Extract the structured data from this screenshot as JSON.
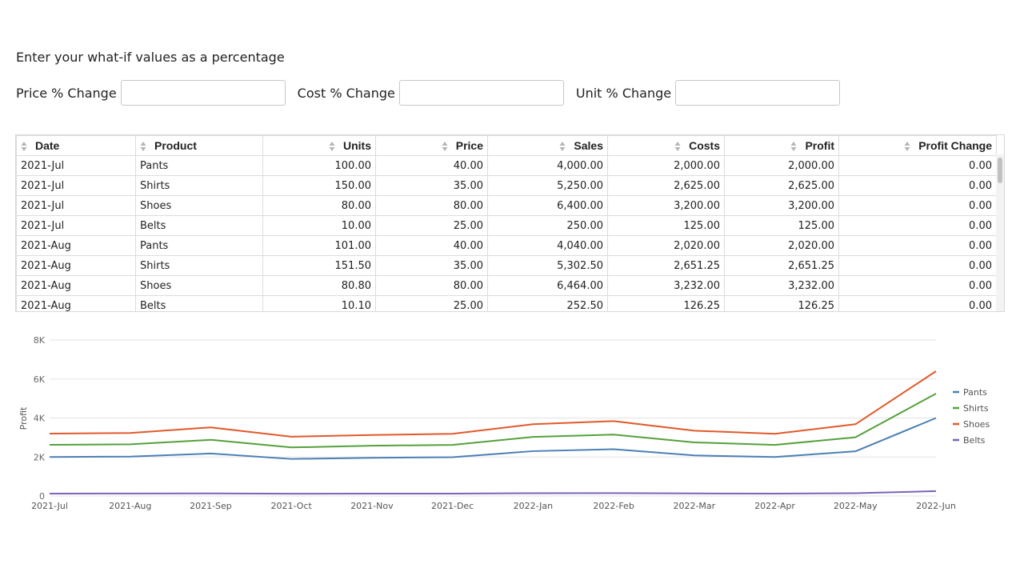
{
  "intro": "Enter your what-if values as a percentage",
  "inputs": {
    "price_label": "Price % Change",
    "cost_label": "Cost % Change",
    "unit_label": "Unit % Change",
    "price_value": "",
    "cost_value": "",
    "unit_value": ""
  },
  "table": {
    "columns": [
      "Date",
      "Product",
      "Units",
      "Price",
      "Sales",
      "Costs",
      "Profit",
      "Profit Change"
    ],
    "rows": [
      [
        "2021-Jul",
        "Pants",
        "100.00",
        "40.00",
        "4,000.00",
        "2,000.00",
        "2,000.00",
        "0.00"
      ],
      [
        "2021-Jul",
        "Shirts",
        "150.00",
        "35.00",
        "5,250.00",
        "2,625.00",
        "2,625.00",
        "0.00"
      ],
      [
        "2021-Jul",
        "Shoes",
        "80.00",
        "80.00",
        "6,400.00",
        "3,200.00",
        "3,200.00",
        "0.00"
      ],
      [
        "2021-Jul",
        "Belts",
        "10.00",
        "25.00",
        "250.00",
        "125.00",
        "125.00",
        "0.00"
      ],
      [
        "2021-Aug",
        "Pants",
        "101.00",
        "40.00",
        "4,040.00",
        "2,020.00",
        "2,020.00",
        "0.00"
      ],
      [
        "2021-Aug",
        "Shirts",
        "151.50",
        "35.00",
        "5,302.50",
        "2,651.25",
        "2,651.25",
        "0.00"
      ],
      [
        "2021-Aug",
        "Shoes",
        "80.80",
        "80.00",
        "6,464.00",
        "3,232.00",
        "3,232.00",
        "0.00"
      ],
      [
        "2021-Aug",
        "Belts",
        "10.10",
        "25.00",
        "252.50",
        "126.25",
        "126.25",
        "0.00"
      ]
    ]
  },
  "chart_data": {
    "type": "line",
    "ylabel": "Profit",
    "xlabel": "",
    "ylim": [
      0,
      8000
    ],
    "y_ticks": [
      "0",
      "2K",
      "4K",
      "6K",
      "8K"
    ],
    "y_tick_values": [
      0,
      2000,
      4000,
      6000,
      8000
    ],
    "categories": [
      "2021-Jul",
      "2021-Aug",
      "2021-Sep",
      "2021-Oct",
      "2021-Nov",
      "2021-Dec",
      "2022-Jan",
      "2022-Feb",
      "2022-Mar",
      "2022-Apr",
      "2022-May",
      "2022-Jun"
    ],
    "legend_position": "right",
    "grid": true,
    "series": [
      {
        "name": "Pants",
        "color": "#4c7fb4",
        "values": [
          2000,
          2020,
          2180,
          1900,
          1960,
          1990,
          2300,
          2400,
          2080,
          2000,
          2290,
          4000
        ]
      },
      {
        "name": "Shirts",
        "color": "#55a03c",
        "values": [
          2625,
          2651,
          2880,
          2490,
          2580,
          2620,
          3030,
          3150,
          2750,
          2620,
          3010,
          5250
        ]
      },
      {
        "name": "Shoes",
        "color": "#e0592a",
        "values": [
          3200,
          3232,
          3520,
          3040,
          3130,
          3190,
          3680,
          3840,
          3350,
          3190,
          3680,
          6400
        ]
      },
      {
        "name": "Belts",
        "color": "#7b63b8",
        "values": [
          125,
          126,
          135,
          119,
          123,
          125,
          144,
          150,
          131,
          125,
          143,
          250
        ]
      }
    ]
  }
}
